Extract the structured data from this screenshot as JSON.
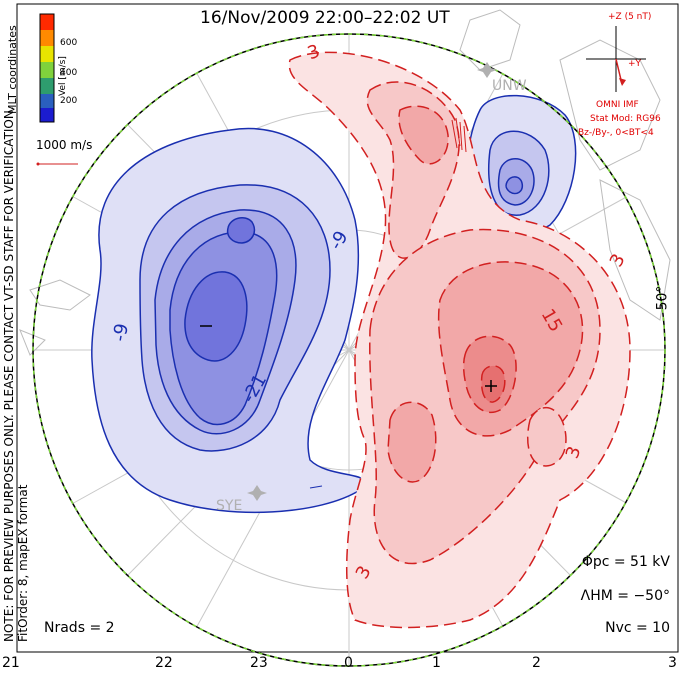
{
  "title": "16/Nov/2009 22:00–22:02 UT",
  "coords_label": "MLT coordinates",
  "colorbar": {
    "label": "Vel [m/s]",
    "ticks": [
      "600",
      "400",
      "200"
    ],
    "colors": [
      "#ff2a00",
      "#ff8a00",
      "#e8e400",
      "#7fd23c",
      "#2e9d6e",
      "#2a5fbf",
      "#1b1ccf"
    ]
  },
  "vector_scale": "1000 m/s",
  "note_line1": "NOTE: FOR PREVIEW PURPOSES ONLY. PLEASE CONTACT VT-SD STAFF FOR VERIFICATION.",
  "note_line2": "FitOrder: 8, mapEX format",
  "imf": {
    "z_label": "+Z (5 nT)",
    "y_label": "+Y",
    "model_lines": [
      "OMNI IMF",
      "Stat Mod: RG96",
      "Bz-/By-, 0<BT<4"
    ]
  },
  "stats": {
    "phi_pc": "Φpc = 51 kV",
    "lambda_hm": "ΛHM = −50°",
    "n_vc": "Nvc = 10",
    "n_rads": "Nrads = 2"
  },
  "mlt_ticks": [
    "21",
    "22",
    "23",
    "0",
    "1",
    "2",
    "3"
  ],
  "lat_label": "50°",
  "stations": [
    "UNW",
    "SYE"
  ],
  "contour_labels": {
    "negative": [
      "-9",
      "-9",
      "-21"
    ],
    "positive": [
      "3",
      "15",
      "3",
      "3",
      "3"
    ],
    "min_marker": "−",
    "max_marker": "+"
  },
  "colors": {
    "negative_line": "#1a2fb0",
    "positive_line": "#d22020",
    "negative_fill": "#6f74e0",
    "positive_fill": "#f07070",
    "hmb_outline": "#7dd83a"
  }
}
